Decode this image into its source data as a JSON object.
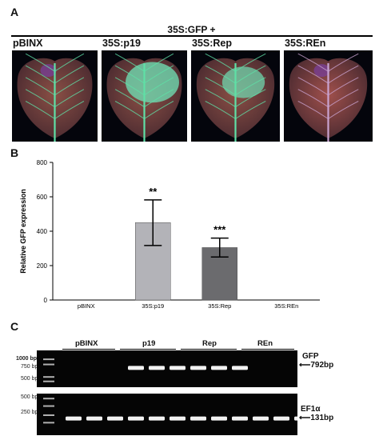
{
  "panel_a": {
    "letter": "A",
    "header": "35S:GFP +",
    "leaves": [
      {
        "label": "pBINX",
        "green": 0.05
      },
      {
        "label": "35S:p19",
        "green": 0.85
      },
      {
        "label": "35S:Rep",
        "green": 0.6
      },
      {
        "label": "35S:REn",
        "green": 0.02
      }
    ]
  },
  "panel_b": {
    "letter": "B"
  },
  "chart_data": {
    "type": "bar",
    "categories": [
      "pBINX",
      "35S:p19",
      "35S:Rep",
      "35S:REn"
    ],
    "values": [
      0,
      450,
      305,
      0
    ],
    "errors_upper": [
      0,
      132,
      55,
      0
    ],
    "errors_lower": [
      0,
      133,
      55,
      0
    ],
    "significance": [
      "",
      "**",
      "***",
      ""
    ],
    "bar_colors": [
      "#c8c8cc",
      "#b3b3b8",
      "#6b6b6e",
      "#c8c8cc"
    ],
    "ylabel": "Relative GFP expression",
    "xlabel": "",
    "ylim": [
      0,
      800
    ],
    "yticks": [
      "0",
      "200",
      "400",
      "600",
      "800"
    ],
    "grid": false
  },
  "panel_c": {
    "letter": "C",
    "groups": [
      "pBINX",
      "p19",
      "Rep",
      "REn"
    ],
    "ladder_top": [
      "1000 bp",
      "750 bp",
      "500 bp"
    ],
    "ladder_bottom": [
      "500 bp",
      "250 bp"
    ],
    "gene_top": "GFP",
    "size_top": "792bp",
    "gene_bottom": "EF1α",
    "size_bottom": "131bp"
  }
}
